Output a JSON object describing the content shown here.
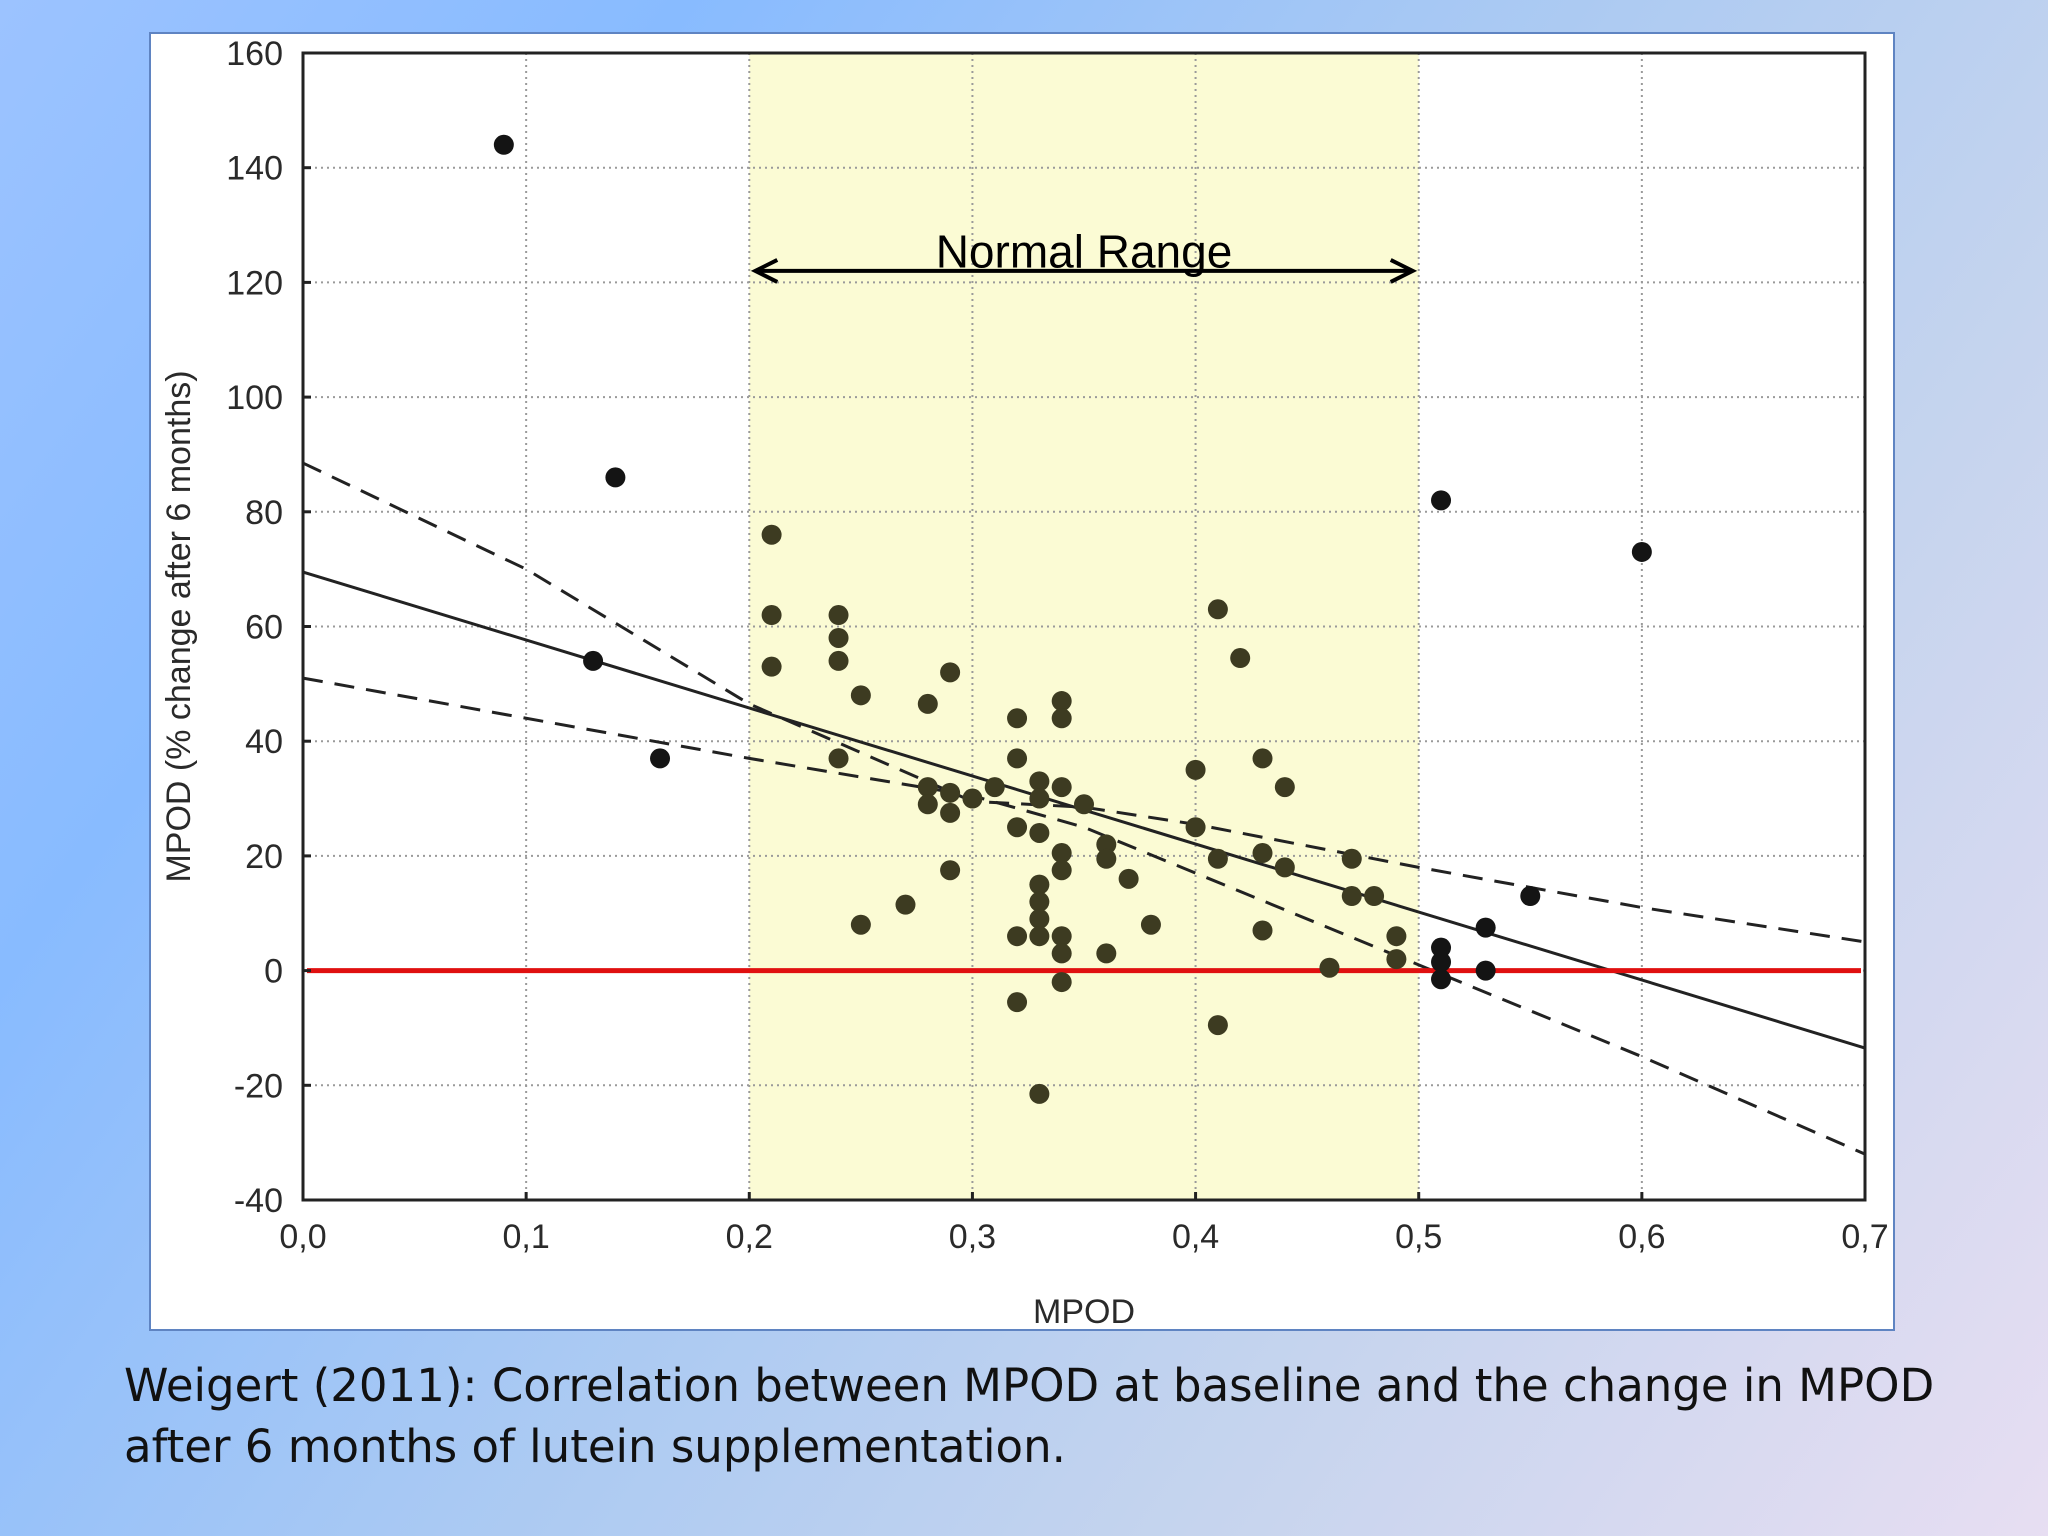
{
  "caption": "Weigert (2011): Correlation between MPOD at baseline and the change in MPOD after 6 months of lutein supplementation.",
  "chart_data": {
    "type": "scatter",
    "title": "",
    "xlabel": "MPOD",
    "ylabel": "MPOD (% change after 6 months)",
    "xlim": [
      0.0,
      0.7
    ],
    "ylim": [
      -40,
      160
    ],
    "x_ticks": [
      0.0,
      0.1,
      0.2,
      0.3,
      0.4,
      0.5,
      0.6,
      0.7
    ],
    "x_tick_labels": [
      "0,0",
      "0,1",
      "0,2",
      "0,3",
      "0,4",
      "0,5",
      "0,6",
      "0,7"
    ],
    "y_ticks": [
      160,
      140,
      120,
      100,
      80,
      60,
      40,
      20,
      0,
      -20,
      -40
    ],
    "y_tick_labels": [
      "160",
      "140",
      "120",
      "100",
      "80",
      "60",
      "40",
      "20",
      "0",
      "-20",
      "-40"
    ],
    "grid": true,
    "normal_range": {
      "label": "Normal Range",
      "x_start": 0.2,
      "x_end": 0.5,
      "color": "#fbfbd4",
      "label_y": 125,
      "arrow_y": 122
    },
    "zero_line": {
      "y": 0,
      "color": "#e01010"
    },
    "regression": {
      "x": [
        0.0,
        0.7
      ],
      "y": [
        69.5,
        -13.5
      ],
      "color": "#222222"
    },
    "confidence_band": {
      "upper": {
        "x": [
          0.0,
          0.1,
          0.2,
          0.3,
          0.35,
          0.4,
          0.5,
          0.6,
          0.7
        ],
        "y": [
          88.5,
          70,
          46.5,
          29.5,
          28.5,
          25.5,
          18,
          11,
          5
        ],
        "color": "#222222"
      },
      "lower": {
        "x": [
          0.0,
          0.1,
          0.2,
          0.3,
          0.35,
          0.4,
          0.5,
          0.6,
          0.7
        ],
        "y": [
          51,
          44,
          37,
          30.5,
          25,
          17,
          1,
          -15,
          -32
        ],
        "color": "#222222"
      }
    },
    "points": {
      "color_outside": "#141414",
      "color_inside": "#3d3b21",
      "x": [
        0.09,
        0.14,
        0.13,
        0.16,
        0.51,
        0.6,
        0.55,
        0.53,
        0.53,
        0.51,
        0.51,
        0.51,
        0.21,
        0.21,
        0.21,
        0.24,
        0.24,
        0.24,
        0.24,
        0.25,
        0.25,
        0.27,
        0.28,
        0.28,
        0.28,
        0.29,
        0.29,
        0.29,
        0.29,
        0.3,
        0.31,
        0.32,
        0.32,
        0.32,
        0.32,
        0.32,
        0.33,
        0.33,
        0.33,
        0.33,
        0.33,
        0.33,
        0.33,
        0.33,
        0.34,
        0.34,
        0.34,
        0.34,
        0.34,
        0.34,
        0.34,
        0.34,
        0.35,
        0.36,
        0.36,
        0.36,
        0.37,
        0.38,
        0.4,
        0.4,
        0.41,
        0.41,
        0.41,
        0.42,
        0.43,
        0.43,
        0.43,
        0.44,
        0.44,
        0.46,
        0.47,
        0.47,
        0.48,
        0.49,
        0.49
      ],
      "y": [
        144,
        86,
        54,
        37,
        82,
        73,
        13,
        7.5,
        0,
        4,
        1.5,
        -1.5,
        76,
        62,
        53,
        62,
        58,
        54,
        37,
        48,
        8,
        11.5,
        46.5,
        32,
        29,
        52,
        31,
        27.5,
        17.5,
        30,
        32,
        44,
        37,
        25,
        6,
        -5.5,
        33,
        30,
        24,
        15,
        12,
        9,
        6,
        -21.5,
        47,
        44,
        32,
        20.5,
        17.5,
        6,
        3,
        -2,
        29,
        22,
        19.5,
        3,
        16,
        8,
        35,
        25,
        63,
        19.5,
        -9.5,
        54.5,
        37,
        20.5,
        7,
        32,
        18,
        0.5,
        19.5,
        13,
        13,
        6,
        2
      ]
    }
  }
}
